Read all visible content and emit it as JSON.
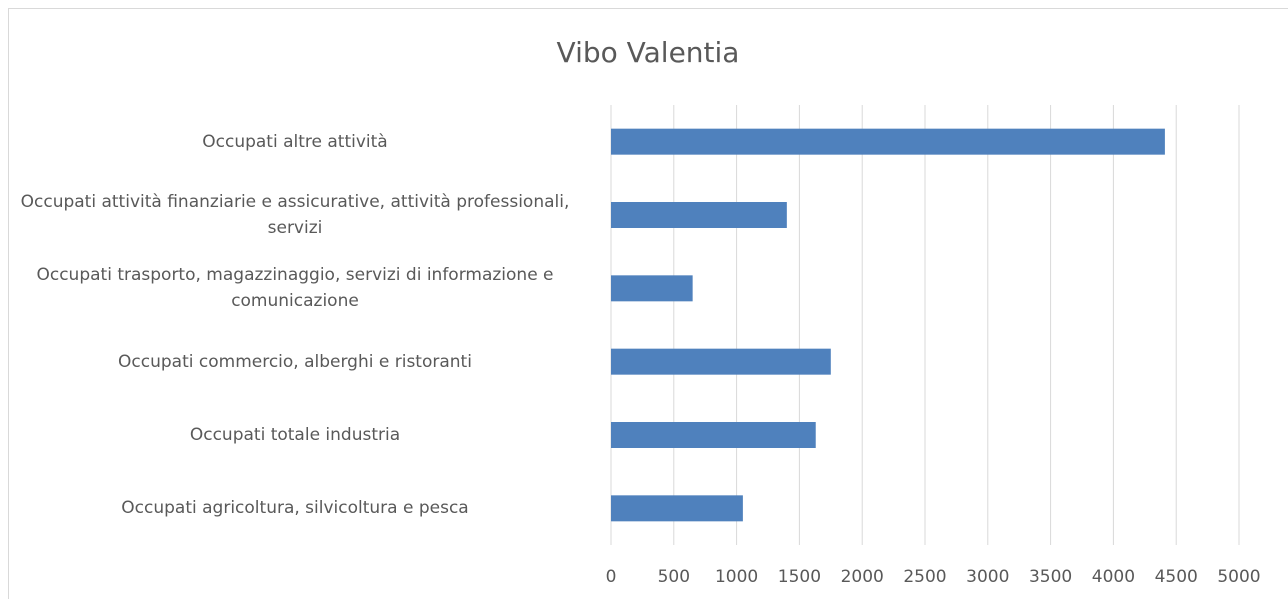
{
  "chart_data": {
    "type": "bar",
    "orientation": "horizontal",
    "title": "Vibo Valentia",
    "categories": [
      "Occupati altre attività",
      "Occupati attività finanziarie e assicurative, attività professionali, servizi",
      "Occupati trasporto, magazzinaggio, servizi di informazione e comunicazione",
      "Occupati commercio, alberghi e ristoranti",
      "Occupati totale industria",
      "Occupati agricoltura, silvicoltura e pesca"
    ],
    "values": [
      4410,
      1400,
      650,
      1750,
      1630,
      1050
    ],
    "color": "#4f81bd",
    "xlim": [
      0,
      5000
    ],
    "xticks": [
      0,
      500,
      1000,
      1500,
      2000,
      2500,
      3000,
      3500,
      4000,
      4500,
      5000
    ],
    "grid": true
  }
}
